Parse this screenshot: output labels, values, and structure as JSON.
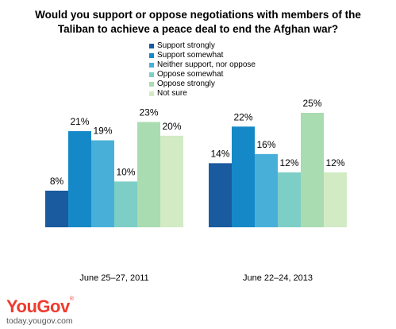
{
  "title": {
    "line1": "Would you support or oppose negotiations with members of the",
    "line2": "Taliban to achieve a peace deal to end the Afghan war?"
  },
  "logo": {
    "text": "YouGov",
    "mark": "®"
  },
  "footer_url": "today.yougov.com",
  "chart_data": {
    "type": "bar",
    "title": "Would you support or oppose negotiations with members of the Taliban to achieve a peace deal to end the Afghan war?",
    "categories": [
      "June 25–27, 2011",
      "June 22–24, 2013"
    ],
    "series": [
      {
        "name": "Support strongly",
        "color": "#1a5a9e",
        "values": [
          8,
          14
        ]
      },
      {
        "name": "Support somewhat",
        "color": "#1589c8",
        "values": [
          21,
          22
        ]
      },
      {
        "name": "Neither support, nor oppose",
        "color": "#48b0d8",
        "values": [
          19,
          16
        ]
      },
      {
        "name": "Oppose somewhat",
        "color": "#7dcec6",
        "values": [
          10,
          12
        ]
      },
      {
        "name": "Oppose strongly",
        "color": "#a9dcb1",
        "values": [
          23,
          25
        ]
      },
      {
        "name": "Not sure",
        "color": "#d2ebc4",
        "values": [
          20,
          12
        ]
      }
    ],
    "value_suffix": "%",
    "ylim": [
      0,
      25
    ],
    "grid": false,
    "legend_position": "top-center"
  }
}
